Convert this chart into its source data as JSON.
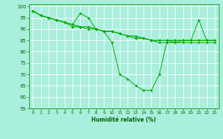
{
  "xlabel": "Humidité relative (%)",
  "background_color": "#aaeedd",
  "grid_color": "#cceeee",
  "line_color": "#00aa00",
  "marker_color": "#00aa00",
  "xlim": [
    -0.5,
    23.5
  ],
  "ylim": [
    55,
    101
  ],
  "yticks": [
    55,
    60,
    65,
    70,
    75,
    80,
    85,
    90,
    95,
    100
  ],
  "xtick_labels": [
    "0",
    "1",
    "2",
    "3",
    "4",
    "5",
    "6",
    "7",
    "8",
    "9",
    "10",
    "11",
    "12",
    "13",
    "14",
    "15",
    "16",
    "17",
    "18",
    "19",
    "20",
    "21",
    "22",
    "23"
  ],
  "series": [
    [
      98,
      96,
      95,
      94,
      93,
      92,
      97,
      95,
      90,
      89,
      84,
      70,
      68,
      65,
      63,
      63,
      70,
      85,
      84,
      85,
      85,
      94,
      85,
      85
    ],
    [
      98,
      96,
      95,
      94,
      93,
      92,
      91,
      91,
      90,
      89,
      89,
      88,
      87,
      86,
      86,
      85,
      85,
      85,
      85,
      85,
      85,
      85,
      85,
      85
    ],
    [
      98,
      96,
      95,
      94,
      93,
      91,
      91,
      90,
      90,
      89,
      89,
      88,
      87,
      86,
      86,
      85,
      84,
      84,
      84,
      84,
      84,
      84,
      84,
      84
    ],
    [
      98,
      96,
      95,
      94,
      93,
      92,
      91,
      91,
      90,
      89,
      89,
      88,
      87,
      87,
      86,
      85,
      85,
      85,
      85,
      85,
      85,
      85,
      85,
      85
    ]
  ]
}
